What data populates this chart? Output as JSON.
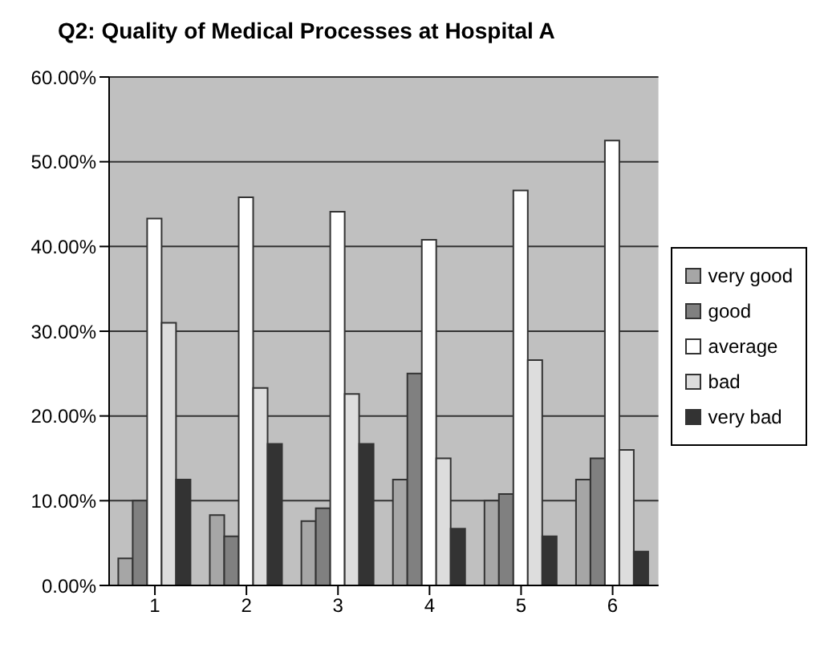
{
  "chart_data": {
    "type": "bar",
    "title": "Q2: Quality of Medical Processes at Hospital A",
    "categories": [
      "1",
      "2",
      "3",
      "4",
      "5",
      "6"
    ],
    "series": [
      {
        "name": "very good",
        "color": "#a6a6a6",
        "values": [
          3.2,
          8.3,
          7.6,
          12.5,
          10.0,
          12.5
        ]
      },
      {
        "name": "good",
        "color": "#808080",
        "values": [
          10.0,
          5.8,
          9.1,
          25.0,
          10.8,
          15.0
        ]
      },
      {
        "name": "average",
        "color": "#ffffff",
        "values": [
          43.3,
          45.8,
          44.1,
          40.8,
          46.6,
          52.5
        ]
      },
      {
        "name": "bad",
        "color": "#dddddd",
        "values": [
          31.0,
          23.3,
          22.6,
          15.0,
          26.6,
          16.0
        ]
      },
      {
        "name": "very bad",
        "color": "#333333",
        "values": [
          12.5,
          16.7,
          16.7,
          6.7,
          5.8,
          4.0
        ]
      }
    ],
    "ylim": [
      0,
      60
    ],
    "yticks": [
      {
        "value": 0,
        "label": "0.00%"
      },
      {
        "value": 10,
        "label": "10.00%"
      },
      {
        "value": 20,
        "label": "20.00%"
      },
      {
        "value": 30,
        "label": "30.00%"
      },
      {
        "value": 40,
        "label": "40.00%"
      },
      {
        "value": 50,
        "label": "50.00%"
      },
      {
        "value": 60,
        "label": "60.00%"
      }
    ],
    "grid": "y",
    "legend": "right"
  }
}
